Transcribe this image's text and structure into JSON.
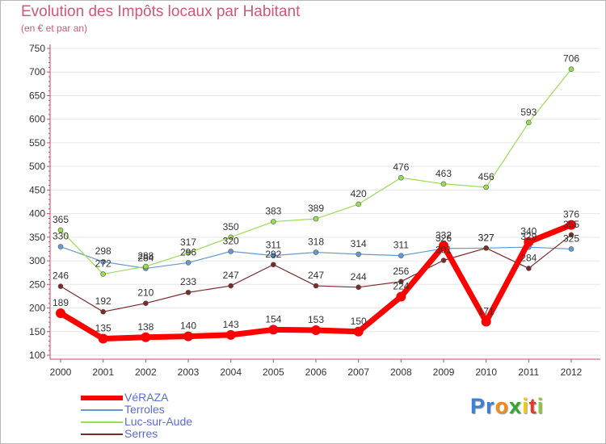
{
  "chart_data": {
    "type": "line",
    "title": "Evolution des Impôts locaux par Habitant",
    "subtitle": "(en € et par an)",
    "x": [
      "2000",
      "2001",
      "2002",
      "2003",
      "2004",
      "2005",
      "2006",
      "2007",
      "2008",
      "2009",
      "2010",
      "2011",
      "2012"
    ],
    "y_ticks": [
      "750",
      "700",
      "650",
      "600",
      "550",
      "500",
      "450",
      "400",
      "350",
      "300",
      "250",
      "200",
      "150",
      "100"
    ],
    "ylim": [
      100,
      750
    ],
    "grid": "horizontal",
    "legend_position": "bottom-left",
    "series": [
      {
        "name": "VéRAZA",
        "color": "#ff0000",
        "values": [
          189,
          135,
          138,
          140,
          143,
          154,
          153,
          150,
          224,
          332,
          171,
          340,
          376
        ],
        "labels": [
          "189",
          "135",
          "138",
          "140",
          "143",
          "154",
          "153",
          "150",
          "224",
          "332",
          "171",
          "340",
          "376"
        ]
      },
      {
        "name": "Terroles",
        "color": "#6699cc",
        "values": [
          330,
          298,
          284,
          296,
          320,
          311,
          318,
          314,
          311,
          326,
          327,
          329,
          325
        ],
        "labels": [
          "330",
          "298",
          "284",
          "296",
          "320",
          "311",
          "318",
          "314",
          "311",
          "326",
          "327",
          "329",
          "325"
        ]
      },
      {
        "name": "Luc-sur-Aude",
        "color": "#99dd55",
        "values": [
          365,
          272,
          288,
          317,
          350,
          383,
          389,
          420,
          476,
          463,
          456,
          593,
          706
        ],
        "labels": [
          "365",
          "272",
          "288",
          "317",
          "350",
          "383",
          "389",
          "420",
          "476",
          "463",
          "456",
          "593",
          "706"
        ]
      },
      {
        "name": "Serres",
        "color": "#7a2a2a",
        "values": [
          246,
          192,
          210,
          233,
          247,
          292,
          247,
          244,
          256,
          301,
          327,
          284,
          355
        ],
        "labels": [
          "246",
          "192",
          "210",
          "233",
          "247",
          "292",
          "247",
          "244",
          "256",
          "301",
          "327",
          "284",
          "355"
        ]
      }
    ]
  },
  "legend": {
    "items": [
      {
        "label": "VéRAZA"
      },
      {
        "label": "Terroles"
      },
      {
        "label": "Luc-sur-Aude"
      },
      {
        "label": "Serres"
      }
    ]
  },
  "logo": {
    "letters": [
      "P",
      "r",
      "o",
      "x",
      "i",
      "t",
      "i"
    ],
    "colors": [
      "#3b7fd6",
      "#3b7fd6",
      "#f28a1c",
      "#2fa82f",
      "#f2c81c",
      "#e53a2a",
      "#8ec63f"
    ]
  }
}
